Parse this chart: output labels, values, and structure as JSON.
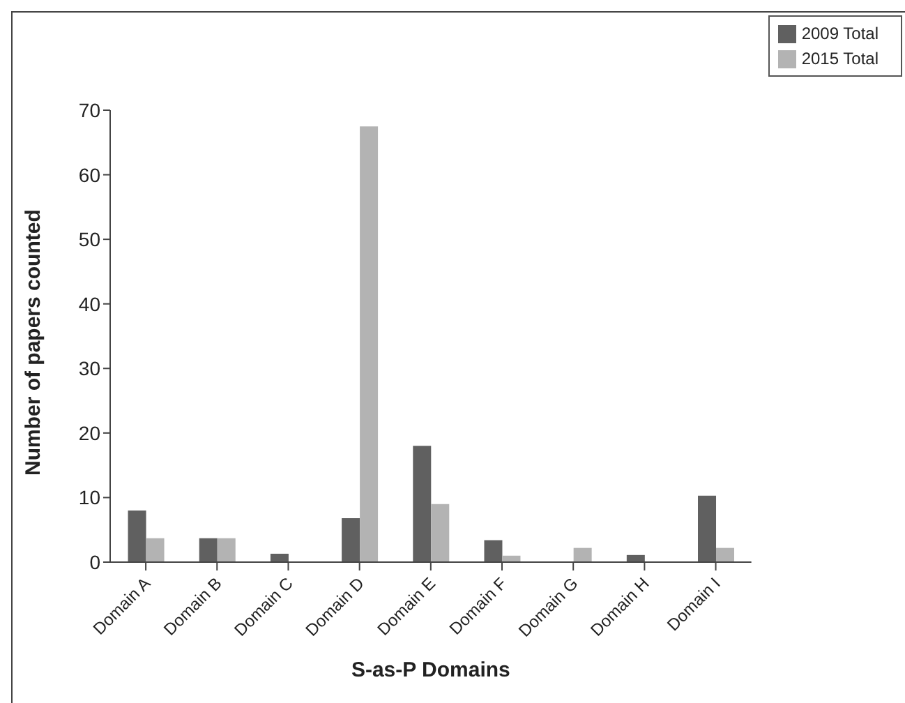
{
  "chart_data": {
    "type": "bar",
    "xlabel": "S-as-P Domains",
    "ylabel": "Number of papers counted",
    "categories": [
      "Domain A",
      "Domain B",
      "Domain C",
      "Domain D",
      "Domain E",
      "Domain F",
      "Domain G",
      "Domain H",
      "Domain I"
    ],
    "series": [
      {
        "name": "2009 Total",
        "color": "#606060",
        "values": [
          8,
          3.7,
          1.3,
          6.8,
          18,
          3.4,
          0,
          1.1,
          10.3
        ]
      },
      {
        "name": "2015 Total",
        "color": "#b3b3b3",
        "values": [
          3.7,
          3.7,
          0,
          67.5,
          9,
          1,
          2.2,
          0,
          2.2
        ]
      }
    ],
    "ylim": [
      0,
      70
    ],
    "yticks": [
      0,
      10,
      20,
      30,
      40,
      50,
      60,
      70
    ],
    "grid": false,
    "legend": "top right"
  }
}
